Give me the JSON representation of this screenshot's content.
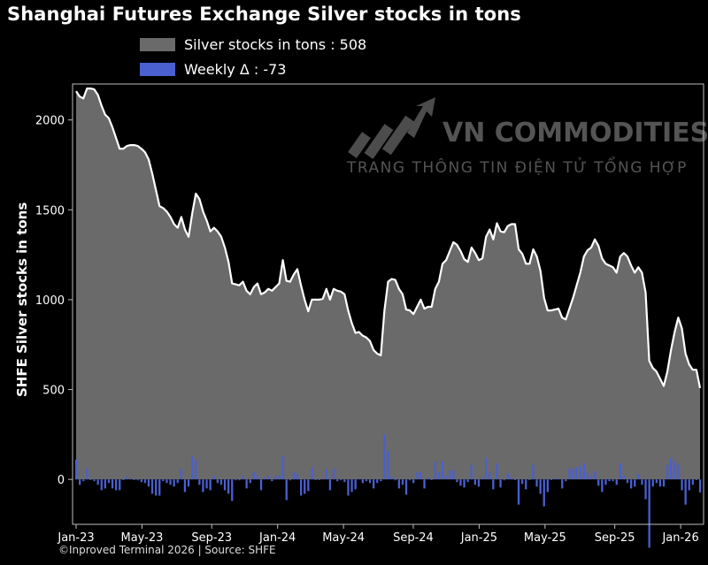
{
  "header": {
    "title": "Shanghai Futures Exchange Silver stocks in tons"
  },
  "legend": [
    {
      "label": "Silver stocks in tons : 508",
      "color": "#6a6a6a"
    },
    {
      "label": "Weekly Δ : -73",
      "color": "#4a5fd0"
    }
  ],
  "watermark": {
    "name": "VN COMMODITIES",
    "tagline": "TRANG THÔNG TIN ĐIỆN TỬ TỔNG HỢP"
  },
  "footer": {
    "source": "©Inproved Terminal 2026 | Source: SHFE"
  },
  "chart_data": {
    "type": "area",
    "ylabel": "SHFE Silver stocks in tons",
    "ylim": [
      -250,
      2200
    ],
    "yticks": [
      0,
      500,
      1000,
      1500,
      2000
    ],
    "xlim": [
      0,
      161
    ],
    "xticks": [
      {
        "label": "Jan-23",
        "x": 0
      },
      {
        "label": "May-23",
        "x": 17
      },
      {
        "label": "Sep-23",
        "x": 35
      },
      {
        "label": "Jan-24",
        "x": 52
      },
      {
        "label": "May-24",
        "x": 69
      },
      {
        "label": "Sep-24",
        "x": 87
      },
      {
        "label": "Jan-25",
        "x": 104
      },
      {
        "label": "May-25",
        "x": 121
      },
      {
        "label": "Sep-25",
        "x": 139
      },
      {
        "label": "Jan-26",
        "x": 156
      }
    ],
    "grid": false,
    "series": [
      {
        "name": "Silver stocks in tons",
        "color": "#6a6a6a",
        "values": [
          2160,
          2130,
          2120,
          2175,
          2175,
          2170,
          2140,
          2080,
          2030,
          2010,
          1960,
          1900,
          1840,
          1840,
          1855,
          1860,
          1860,
          1855,
          1840,
          1820,
          1780,
          1700,
          1610,
          1520,
          1510,
          1490,
          1460,
          1420,
          1400,
          1460,
          1390,
          1350,
          1480,
          1590,
          1560,
          1490,
          1440,
          1380,
          1400,
          1380,
          1350,
          1290,
          1210,
          1090,
          1085,
          1080,
          1100,
          1050,
          1030,
          1070,
          1090,
          1030,
          1040,
          1060,
          1050,
          1070,
          1090,
          1220,
          1105,
          1100,
          1140,
          1170,
          1080,
          1000,
          935,
          1000,
          1000,
          1000,
          1005,
          1060,
          1000,
          1060,
          1050,
          1045,
          1030,
          940,
          870,
          815,
          820,
          800,
          790,
          770,
          720,
          700,
          690,
          940,
          1100,
          1115,
          1110,
          1060,
          1030,
          945,
          940,
          920,
          960,
          1000,
          950,
          960,
          960,
          1060,
          1100,
          1200,
          1220,
          1270,
          1320,
          1305,
          1270,
          1225,
          1210,
          1290,
          1260,
          1220,
          1230,
          1350,
          1390,
          1335,
          1425,
          1380,
          1375,
          1410,
          1420,
          1420,
          1280,
          1255,
          1200,
          1200,
          1280,
          1240,
          1160,
          1010,
          940,
          940,
          945,
          950,
          900,
          890,
          950,
          1010,
          1080,
          1150,
          1240,
          1275,
          1290,
          1335,
          1300,
          1230,
          1200,
          1190,
          1180,
          1150,
          1240,
          1260,
          1240,
          1190,
          1150,
          1180,
          1150,
          1040,
          660,
          620,
          600,
          560,
          520,
          600,
          720,
          820,
          900,
          840,
          700,
          640,
          610,
          610,
          508
        ]
      },
      {
        "name": "Weekly Δ",
        "color": "#4a5fd0",
        "values": [
          110,
          -30,
          -10,
          60,
          0,
          -10,
          -30,
          -60,
          -50,
          -20,
          -50,
          -60,
          -60,
          0,
          15,
          5,
          0,
          -5,
          -15,
          -20,
          -40,
          -80,
          -90,
          -90,
          -10,
          -20,
          -30,
          -40,
          -20,
          60,
          -70,
          -40,
          130,
          110,
          -30,
          -70,
          -50,
          -60,
          20,
          -20,
          -30,
          -60,
          -80,
          -120,
          -5,
          -5,
          20,
          -50,
          -20,
          40,
          20,
          -60,
          10,
          20,
          -10,
          20,
          20,
          130,
          -115,
          -5,
          40,
          30,
          -90,
          -80,
          -65,
          65,
          0,
          0,
          5,
          55,
          -60,
          60,
          -10,
          -5,
          -15,
          -90,
          -70,
          -55,
          5,
          -20,
          -10,
          -20,
          -50,
          -20,
          -10,
          250,
          160,
          15,
          -5,
          -50,
          -30,
          -85,
          -5,
          -20,
          40,
          40,
          -50,
          10,
          0,
          100,
          40,
          100,
          20,
          50,
          50,
          -15,
          -35,
          -45,
          -15,
          80,
          -30,
          -40,
          10,
          120,
          40,
          -55,
          90,
          -45,
          -5,
          35,
          10,
          0,
          -140,
          -25,
          -55,
          0,
          80,
          -40,
          -80,
          -150,
          -70,
          0,
          5,
          5,
          -50,
          -10,
          60,
          60,
          70,
          70,
          90,
          35,
          15,
          45,
          -35,
          -70,
          -30,
          -10,
          -10,
          -30,
          90,
          20,
          -20,
          -50,
          -40,
          30,
          -30,
          -110,
          -380,
          -40,
          -20,
          -40,
          -40,
          80,
          120,
          100,
          80,
          -60,
          -140,
          -60,
          -30,
          0,
          -73
        ]
      }
    ]
  }
}
